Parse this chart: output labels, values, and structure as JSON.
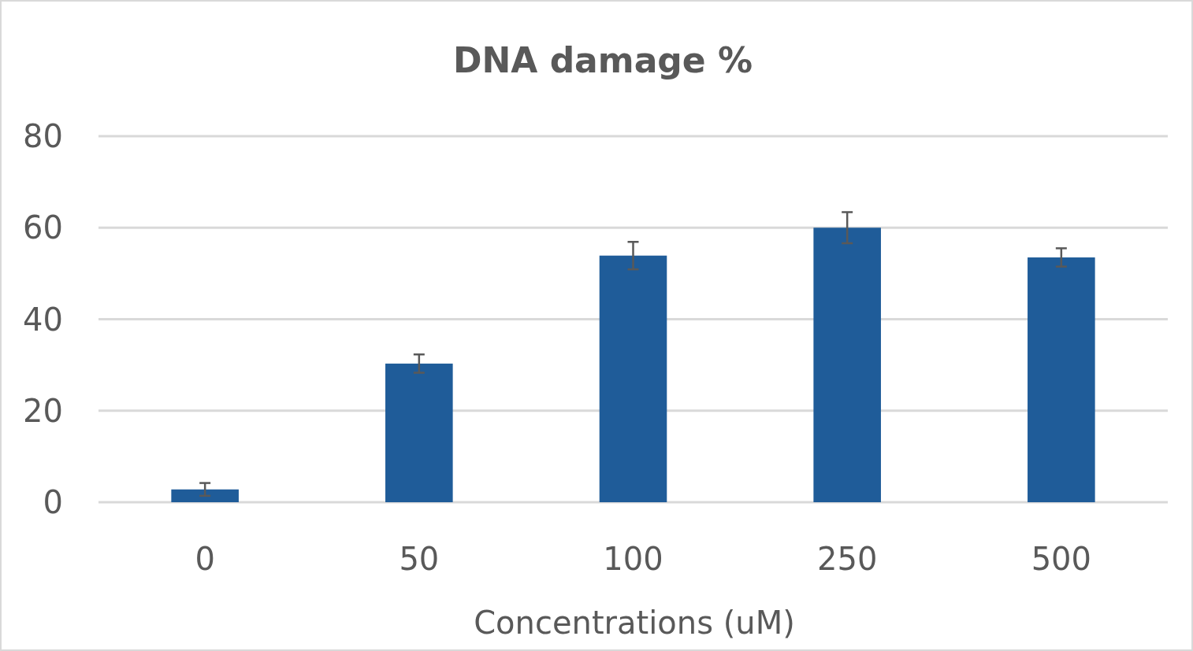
{
  "chart_data": {
    "type": "bar",
    "title": "DNA damage %",
    "xlabel": "Concentrations (uM)",
    "categories": [
      "0",
      "50",
      "100",
      "250",
      "500"
    ],
    "values": [
      2.8,
      30.3,
      53.9,
      60,
      53.5
    ],
    "errors": [
      1.4,
      2,
      3,
      3.4,
      2
    ],
    "color": "#1f5c99",
    "ylim": [
      0,
      80
    ],
    "yticks": [
      0,
      20,
      40,
      60,
      80
    ],
    "grid": "y"
  }
}
